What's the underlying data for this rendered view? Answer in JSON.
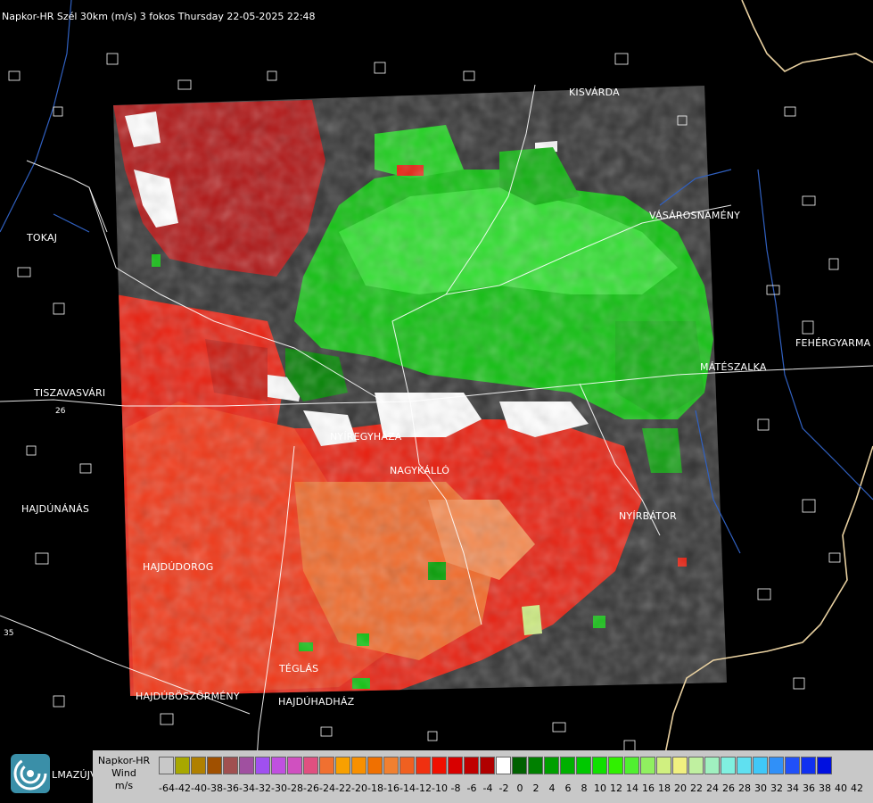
{
  "title": "Napkor-HR Szél 30km (m/s) 3 fokos Thursday 22-05-2025 22:48",
  "cities": [
    {
      "id": "kisvarda",
      "name": "KISVÁRDA"
    },
    {
      "id": "tokaj",
      "name": "TOKAJ"
    },
    {
      "id": "vasarosnameny",
      "name": "VÁSÁROSNAMÉNY"
    },
    {
      "id": "fehergyarmat",
      "name": "FEHÉRGYARMA"
    },
    {
      "id": "mateszalka",
      "name": "MÁTÉSZALKA"
    },
    {
      "id": "tiszavasvari",
      "name": "TISZAVASVÁRI"
    },
    {
      "id": "nyiregyhaza",
      "name": "NYÍREGYHÁZA"
    },
    {
      "id": "nagykallo",
      "name": "NAGYKÁLLÓ"
    },
    {
      "id": "hajdunanas",
      "name": "HAJDÚNÁNÁS"
    },
    {
      "id": "nyirbator",
      "name": "NYÍRBÁTOR"
    },
    {
      "id": "hajdudorog",
      "name": "HAJDÚDOROG"
    },
    {
      "id": "teglas",
      "name": "TÉGLÁS"
    },
    {
      "id": "hajduboszormeny",
      "name": "HAJDÚBÖSZÖRMÉNY"
    },
    {
      "id": "hajduhadhaz",
      "name": "HAJDÚHADHÁZ"
    },
    {
      "id": "almazujvaros",
      "name": "LMAZÚJVÁR"
    }
  ],
  "road_numbers": [
    "26",
    "35"
  ],
  "legend": {
    "line1": "Napkor-HR",
    "line2": "Wind",
    "line3": "m/s",
    "swatches": [
      "#c8c8c8",
      "#a8a800",
      "#b08000",
      "#a05000",
      "#a05050",
      "#a050a0",
      "#a050f0",
      "#c050e0",
      "#d050c0",
      "#e05080",
      "#f07030",
      "#f8a000",
      "#f89000",
      "#f07000",
      "#f08030",
      "#f06020",
      "#f03010",
      "#f01000",
      "#d80000",
      "#c00000",
      "#b00000",
      "#ffffff",
      "#006000",
      "#008000",
      "#00a000",
      "#00b000",
      "#00c800",
      "#10e000",
      "#30f000",
      "#50f030",
      "#90f060",
      "#d0f080",
      "#f0f080",
      "#c0f0a0",
      "#a0f0c0",
      "#80f0e0",
      "#60e0f0",
      "#40c8f8",
      "#3090f8",
      "#2050f8",
      "#1030f0",
      "#0010e0"
    ],
    "ticks": [
      "-64",
      "-42",
      "-40",
      "-38",
      "-36",
      "-34",
      "-32",
      "-30",
      "-28",
      "-26",
      "-24",
      "-22",
      "-20",
      "-18",
      "-16",
      "-14",
      "-12",
      "-10",
      "-8",
      "-6",
      "-4",
      "-2",
      "0",
      "2",
      "4",
      "6",
      "8",
      "10",
      "12",
      "14",
      "16",
      "18",
      "20",
      "22",
      "24",
      "26",
      "28",
      "30",
      "32",
      "34",
      "36",
      "38",
      "40",
      "42"
    ]
  }
}
